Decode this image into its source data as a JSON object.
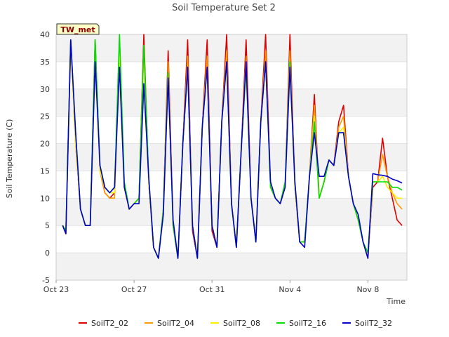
{
  "chart_data": {
    "type": "line",
    "title": "Soil Temperature Set 2",
    "xlabel": "Time",
    "ylabel": "Soil Temperature (C)",
    "site_label": "TW_met",
    "xlim": [
      "2023-10-23",
      "2023-11-10"
    ],
    "ylim": [
      -5,
      40
    ],
    "x_ticks": [
      "Oct 23",
      "Oct 27",
      "Oct 31",
      "Nov 4",
      "Nov 8"
    ],
    "y_ticks": [
      -5,
      0,
      5,
      10,
      15,
      20,
      25,
      30,
      35,
      40
    ],
    "grid": "horizontal bands",
    "legend_position": "bottom",
    "series": [
      {
        "name": "SoilT2_02",
        "color": "#dd0000",
        "x": [
          "Oct 23 08:00",
          "Oct 23 12:00",
          "Oct 23 18:00",
          "Oct 24 00:00",
          "Oct 24 06:00",
          "Oct 24 12:00",
          "Oct 24 18:00",
          "Oct 25 00:00",
          "Oct 25 06:00",
          "Oct 25 12:00",
          "Oct 25 18:00",
          "Oct 26 00:00",
          "Oct 26 06:00",
          "Oct 26 12:00",
          "Oct 26 18:00",
          "Oct 27 00:00",
          "Oct 27 06:00",
          "Oct 27 12:00",
          "Oct 27 18:00",
          "Oct 28 00:00",
          "Oct 28 06:00",
          "Oct 28 12:00",
          "Oct 28 18:00",
          "Oct 29 00:00",
          "Oct 29 06:00",
          "Oct 29 12:00",
          "Oct 29 18:00",
          "Oct 30 00:00",
          "Oct 30 06:00",
          "Oct 30 12:00",
          "Oct 30 18:00",
          "Oct 31 00:00",
          "Oct 31 06:00",
          "Oct 31 12:00",
          "Oct 31 18:00",
          "Nov 1 00:00",
          "Nov 1 06:00",
          "Nov 1 12:00",
          "Nov 1 18:00",
          "Nov 2 00:00",
          "Nov 2 06:00",
          "Nov 2 12:00",
          "Nov 2 18:00",
          "Nov 3 00:00",
          "Nov 3 06:00",
          "Nov 3 12:00",
          "Nov 3 18:00",
          "Nov 4 00:00",
          "Nov 4 06:00",
          "Nov 4 12:00",
          "Nov 4 18:00",
          "Nov 5 00:00",
          "Nov 5 06:00",
          "Nov 5 12:00",
          "Nov 5 18:00",
          "Nov 6 00:00",
          "Nov 6 06:00",
          "Nov 6 12:00",
          "Nov 6 18:00",
          "Nov 7 00:00",
          "Nov 7 06:00",
          "Nov 7 12:00",
          "Nov 7 18:00",
          "Nov 8 00:00",
          "Nov 8 06:00",
          "Nov 8 12:00",
          "Nov 8 18:00",
          "Nov 9 00:00",
          "Nov 9 06:00",
          "Nov 9 12:00",
          "Nov 9 18:00"
        ],
        "values": [
          5,
          3.5,
          39,
          20,
          8,
          5,
          5,
          39,
          15,
          11,
          10,
          11,
          39,
          12,
          8,
          9,
          10,
          40,
          13,
          1,
          -1,
          8,
          37,
          5,
          -1,
          20,
          39,
          4,
          -1,
          23,
          39,
          4,
          1,
          24,
          40,
          9,
          1,
          19,
          39,
          10,
          2,
          24,
          40,
          12,
          10,
          9,
          12,
          40,
          12,
          2,
          2,
          14,
          29,
          10,
          13,
          17,
          16,
          24,
          27,
          14,
          9,
          6,
          2,
          -1,
          12,
          13,
          21,
          14,
          10,
          6,
          5
        ]
      },
      {
        "name": "SoilT2_04",
        "color": "#ff9900",
        "x": [
          "Oct 23 08:00",
          "Oct 23 12:00",
          "Oct 23 18:00",
          "Oct 24 00:00",
          "Oct 24 06:00",
          "Oct 24 12:00",
          "Oct 24 18:00",
          "Oct 25 00:00",
          "Oct 25 06:00",
          "Oct 25 12:00",
          "Oct 25 18:00",
          "Oct 26 00:00",
          "Oct 26 06:00",
          "Oct 26 12:00",
          "Oct 26 18:00",
          "Oct 27 00:00",
          "Oct 27 06:00",
          "Oct 27 12:00",
          "Oct 27 18:00",
          "Oct 28 00:00",
          "Oct 28 06:00",
          "Oct 28 12:00",
          "Oct 28 18:00",
          "Oct 29 00:00",
          "Oct 29 06:00",
          "Oct 29 12:00",
          "Oct 29 18:00",
          "Oct 30 00:00",
          "Oct 30 06:00",
          "Oct 30 12:00",
          "Oct 30 18:00",
          "Oct 31 00:00",
          "Oct 31 06:00",
          "Oct 31 12:00",
          "Oct 31 18:00",
          "Nov 1 00:00",
          "Nov 1 06:00",
          "Nov 1 12:00",
          "Nov 1 18:00",
          "Nov 2 00:00",
          "Nov 2 06:00",
          "Nov 2 12:00",
          "Nov 2 18:00",
          "Nov 3 00:00",
          "Nov 3 06:00",
          "Nov 3 12:00",
          "Nov 3 18:00",
          "Nov 4 00:00",
          "Nov 4 06:00",
          "Nov 4 12:00",
          "Nov 4 18:00",
          "Nov 5 00:00",
          "Nov 5 06:00",
          "Nov 5 12:00",
          "Nov 5 18:00",
          "Nov 6 00:00",
          "Nov 6 06:00",
          "Nov 6 12:00",
          "Nov 6 18:00",
          "Nov 7 00:00",
          "Nov 7 06:00",
          "Nov 7 12:00",
          "Nov 7 18:00",
          "Nov 8 00:00",
          "Nov 8 06:00",
          "Nov 8 12:00",
          "Nov 8 18:00",
          "Nov 9 00:00",
          "Nov 9 06:00",
          "Nov 9 12:00",
          "Nov 9 18:00"
        ],
        "values": [
          5,
          4,
          38,
          20,
          8,
          5,
          5,
          38,
          15,
          11,
          10,
          10,
          38,
          12,
          8,
          9,
          10,
          38,
          13,
          1,
          -1,
          8,
          35,
          5,
          -1,
          20,
          36,
          5,
          -1,
          23,
          36,
          5,
          1,
          24,
          37,
          9,
          1,
          19,
          36,
          10,
          2,
          24,
          37,
          12,
          10,
          9,
          12,
          37,
          12,
          2,
          2,
          14,
          27,
          10,
          13,
          17,
          16,
          23,
          25,
          14,
          9,
          6,
          2,
          -1,
          13,
          13,
          18,
          14,
          11,
          9,
          8
        ]
      },
      {
        "name": "SoilT2_08",
        "color": "#ffee00",
        "x": [
          "Oct 23 08:00",
          "Oct 23 12:00",
          "Oct 23 18:00",
          "Oct 24 00:00",
          "Oct 24 06:00",
          "Oct 24 12:00",
          "Oct 24 18:00",
          "Oct 25 00:00",
          "Oct 25 06:00",
          "Oct 25 12:00",
          "Oct 25 18:00",
          "Oct 26 00:00",
          "Oct 26 06:00",
          "Oct 26 12:00",
          "Oct 26 18:00",
          "Oct 27 00:00",
          "Oct 27 06:00",
          "Oct 27 12:00",
          "Oct 27 18:00",
          "Oct 28 00:00",
          "Oct 28 06:00",
          "Oct 28 12:00",
          "Oct 28 18:00",
          "Oct 29 00:00",
          "Oct 29 06:00",
          "Oct 29 12:00",
          "Oct 29 18:00",
          "Oct 30 00:00",
          "Oct 30 06:00",
          "Oct 30 12:00",
          "Oct 30 18:00",
          "Oct 31 00:00",
          "Oct 31 06:00",
          "Oct 31 12:00",
          "Oct 31 18:00",
          "Nov 1 00:00",
          "Nov 1 06:00",
          "Nov 1 12:00",
          "Nov 1 18:00",
          "Nov 2 00:00",
          "Nov 2 06:00",
          "Nov 2 12:00",
          "Nov 2 18:00",
          "Nov 3 00:00",
          "Nov 3 06:00",
          "Nov 3 12:00",
          "Nov 3 18:00",
          "Nov 4 00:00",
          "Nov 4 06:00",
          "Nov 4 12:00",
          "Nov 4 18:00",
          "Nov 5 00:00",
          "Nov 5 06:00",
          "Nov 5 12:00",
          "Nov 5 18:00",
          "Nov 6 00:00",
          "Nov 6 06:00",
          "Nov 6 12:00",
          "Nov 6 18:00",
          "Nov 7 00:00",
          "Nov 7 06:00",
          "Nov 7 12:00",
          "Nov 7 18:00",
          "Nov 8 00:00",
          "Nov 8 06:00",
          "Nov 8 12:00",
          "Nov 8 18:00",
          "Nov 9 00:00",
          "Nov 9 06:00",
          "Nov 9 12:00",
          "Nov 9 18:00"
        ],
        "values": [
          5,
          4,
          38,
          20,
          8,
          5,
          5,
          38,
          15,
          12,
          11,
          11,
          38,
          12,
          8,
          9,
          10,
          37,
          13,
          1,
          -1,
          8,
          33,
          5,
          -1,
          20,
          34,
          5,
          -1,
          23,
          34,
          5,
          1,
          24,
          35,
          9,
          1,
          19,
          34,
          10,
          2,
          24,
          35,
          12,
          10,
          9,
          12,
          35,
          12,
          2,
          2,
          14,
          25,
          10,
          13,
          17,
          16,
          22,
          23,
          14,
          9,
          6,
          2,
          -1,
          13,
          13,
          14,
          12,
          11,
          10,
          10
        ]
      },
      {
        "name": "SoilT2_16",
        "color": "#00dd00",
        "x": [
          "Oct 23 08:00",
          "Oct 23 12:00",
          "Oct 23 18:00",
          "Oct 24 00:00",
          "Oct 24 06:00",
          "Oct 24 12:00",
          "Oct 24 18:00",
          "Oct 25 00:00",
          "Oct 25 06:00",
          "Oct 25 12:00",
          "Oct 25 18:00",
          "Oct 26 00:00",
          "Oct 26 06:00",
          "Oct 26 12:00",
          "Oct 26 18:00",
          "Oct 27 00:00",
          "Oct 27 06:00",
          "Oct 27 12:00",
          "Oct 27 18:00",
          "Oct 28 00:00",
          "Oct 28 06:00",
          "Oct 28 12:00",
          "Oct 28 18:00",
          "Oct 29 00:00",
          "Oct 29 06:00",
          "Oct 29 12:00",
          "Oct 29 18:00",
          "Oct 30 00:00",
          "Oct 30 06:00",
          "Oct 30 12:00",
          "Oct 30 18:00",
          "Oct 31 00:00",
          "Oct 31 06:00",
          "Oct 31 12:00",
          "Oct 31 18:00",
          "Nov 1 00:00",
          "Nov 1 06:00",
          "Nov 1 12:00",
          "Nov 1 18:00",
          "Nov 2 00:00",
          "Nov 2 06:00",
          "Nov 2 12:00",
          "Nov 2 18:00",
          "Nov 3 00:00",
          "Nov 3 06:00",
          "Nov 3 12:00",
          "Nov 3 18:00",
          "Nov 4 00:00",
          "Nov 4 06:00",
          "Nov 4 12:00",
          "Nov 4 18:00",
          "Nov 5 00:00",
          "Nov 5 06:00",
          "Nov 5 12:00",
          "Nov 5 18:00",
          "Nov 6 00:00",
          "Nov 6 06:00",
          "Nov 6 12:00",
          "Nov 6 18:00",
          "Nov 7 00:00",
          "Nov 7 06:00",
          "Nov 7 12:00",
          "Nov 7 18:00",
          "Nov 8 00:00",
          "Nov 8 06:00",
          "Nov 8 12:00",
          "Nov 8 18:00",
          "Nov 9 00:00",
          "Nov 9 06:00",
          "Nov 9 12:00",
          "Nov 9 18:00"
        ],
        "values": [
          5,
          4,
          39,
          22,
          8,
          5,
          5,
          39,
          16,
          12,
          11,
          12,
          40,
          13,
          8,
          9,
          10,
          38,
          14,
          1,
          -1,
          8,
          33,
          5,
          -1,
          20,
          34,
          5,
          -1,
          23,
          34,
          5,
          1,
          24,
          35,
          9,
          1,
          19,
          34,
          10,
          2,
          24,
          35,
          12,
          10,
          9,
          13,
          35,
          13,
          2,
          2,
          14,
          24,
          10,
          13,
          17,
          16,
          22,
          22,
          14,
          9,
          6,
          2,
          0,
          13,
          13,
          13,
          13,
          12,
          12,
          11.5
        ]
      },
      {
        "name": "SoilT2_32",
        "color": "#0000cc",
        "x": [
          "Oct 23 08:00",
          "Oct 23 12:00",
          "Oct 23 18:00",
          "Oct 24 00:00",
          "Oct 24 06:00",
          "Oct 24 12:00",
          "Oct 24 18:00",
          "Oct 25 00:00",
          "Oct 25 06:00",
          "Oct 25 12:00",
          "Oct 25 18:00",
          "Oct 26 00:00",
          "Oct 26 06:00",
          "Oct 26 12:00",
          "Oct 26 18:00",
          "Oct 27 00:00",
          "Oct 27 06:00",
          "Oct 27 12:00",
          "Oct 27 18:00",
          "Oct 28 00:00",
          "Oct 28 06:00",
          "Oct 28 12:00",
          "Oct 28 18:00",
          "Oct 29 00:00",
          "Oct 29 06:00",
          "Oct 29 12:00",
          "Oct 29 18:00",
          "Oct 30 00:00",
          "Oct 30 06:00",
          "Oct 30 12:00",
          "Oct 30 18:00",
          "Oct 31 00:00",
          "Oct 31 06:00",
          "Oct 31 12:00",
          "Oct 31 18:00",
          "Nov 1 00:00",
          "Nov 1 06:00",
          "Nov 1 12:00",
          "Nov 1 18:00",
          "Nov 2 00:00",
          "Nov 2 06:00",
          "Nov 2 12:00",
          "Nov 2 18:00",
          "Nov 3 00:00",
          "Nov 3 06:00",
          "Nov 3 12:00",
          "Nov 3 18:00",
          "Nov 4 00:00",
          "Nov 4 06:00",
          "Nov 4 12:00",
          "Nov 4 18:00",
          "Nov 5 00:00",
          "Nov 5 06:00",
          "Nov 5 12:00",
          "Nov 5 18:00",
          "Nov 6 00:00",
          "Nov 6 06:00",
          "Nov 6 12:00",
          "Nov 6 18:00",
          "Nov 7 00:00",
          "Nov 7 06:00",
          "Nov 7 12:00",
          "Nov 7 18:00",
          "Nov 8 00:00",
          "Nov 8 06:00",
          "Nov 8 12:00",
          "Nov 8 18:00",
          "Nov 9 00:00",
          "Nov 9 06:00",
          "Nov 9 12:00",
          "Nov 9 18:00"
        ],
        "values": [
          5,
          3.5,
          39,
          22,
          8,
          5,
          5,
          35,
          16,
          12,
          11,
          12,
          34,
          12,
          8,
          9,
          9,
          31,
          14,
          1,
          -1,
          7,
          32,
          6,
          -1,
          20,
          34,
          5,
          -1,
          23,
          34,
          5,
          1,
          24,
          35,
          9,
          1,
          19,
          35,
          10,
          2,
          24,
          35,
          13,
          10,
          9,
          12,
          34,
          13,
          2,
          1,
          14,
          22,
          14,
          14,
          17,
          16,
          22,
          22,
          14,
          9,
          7,
          2,
          -1,
          14.5,
          14.3,
          14.2,
          14,
          13.5,
          13.2,
          12.8
        ]
      }
    ]
  }
}
